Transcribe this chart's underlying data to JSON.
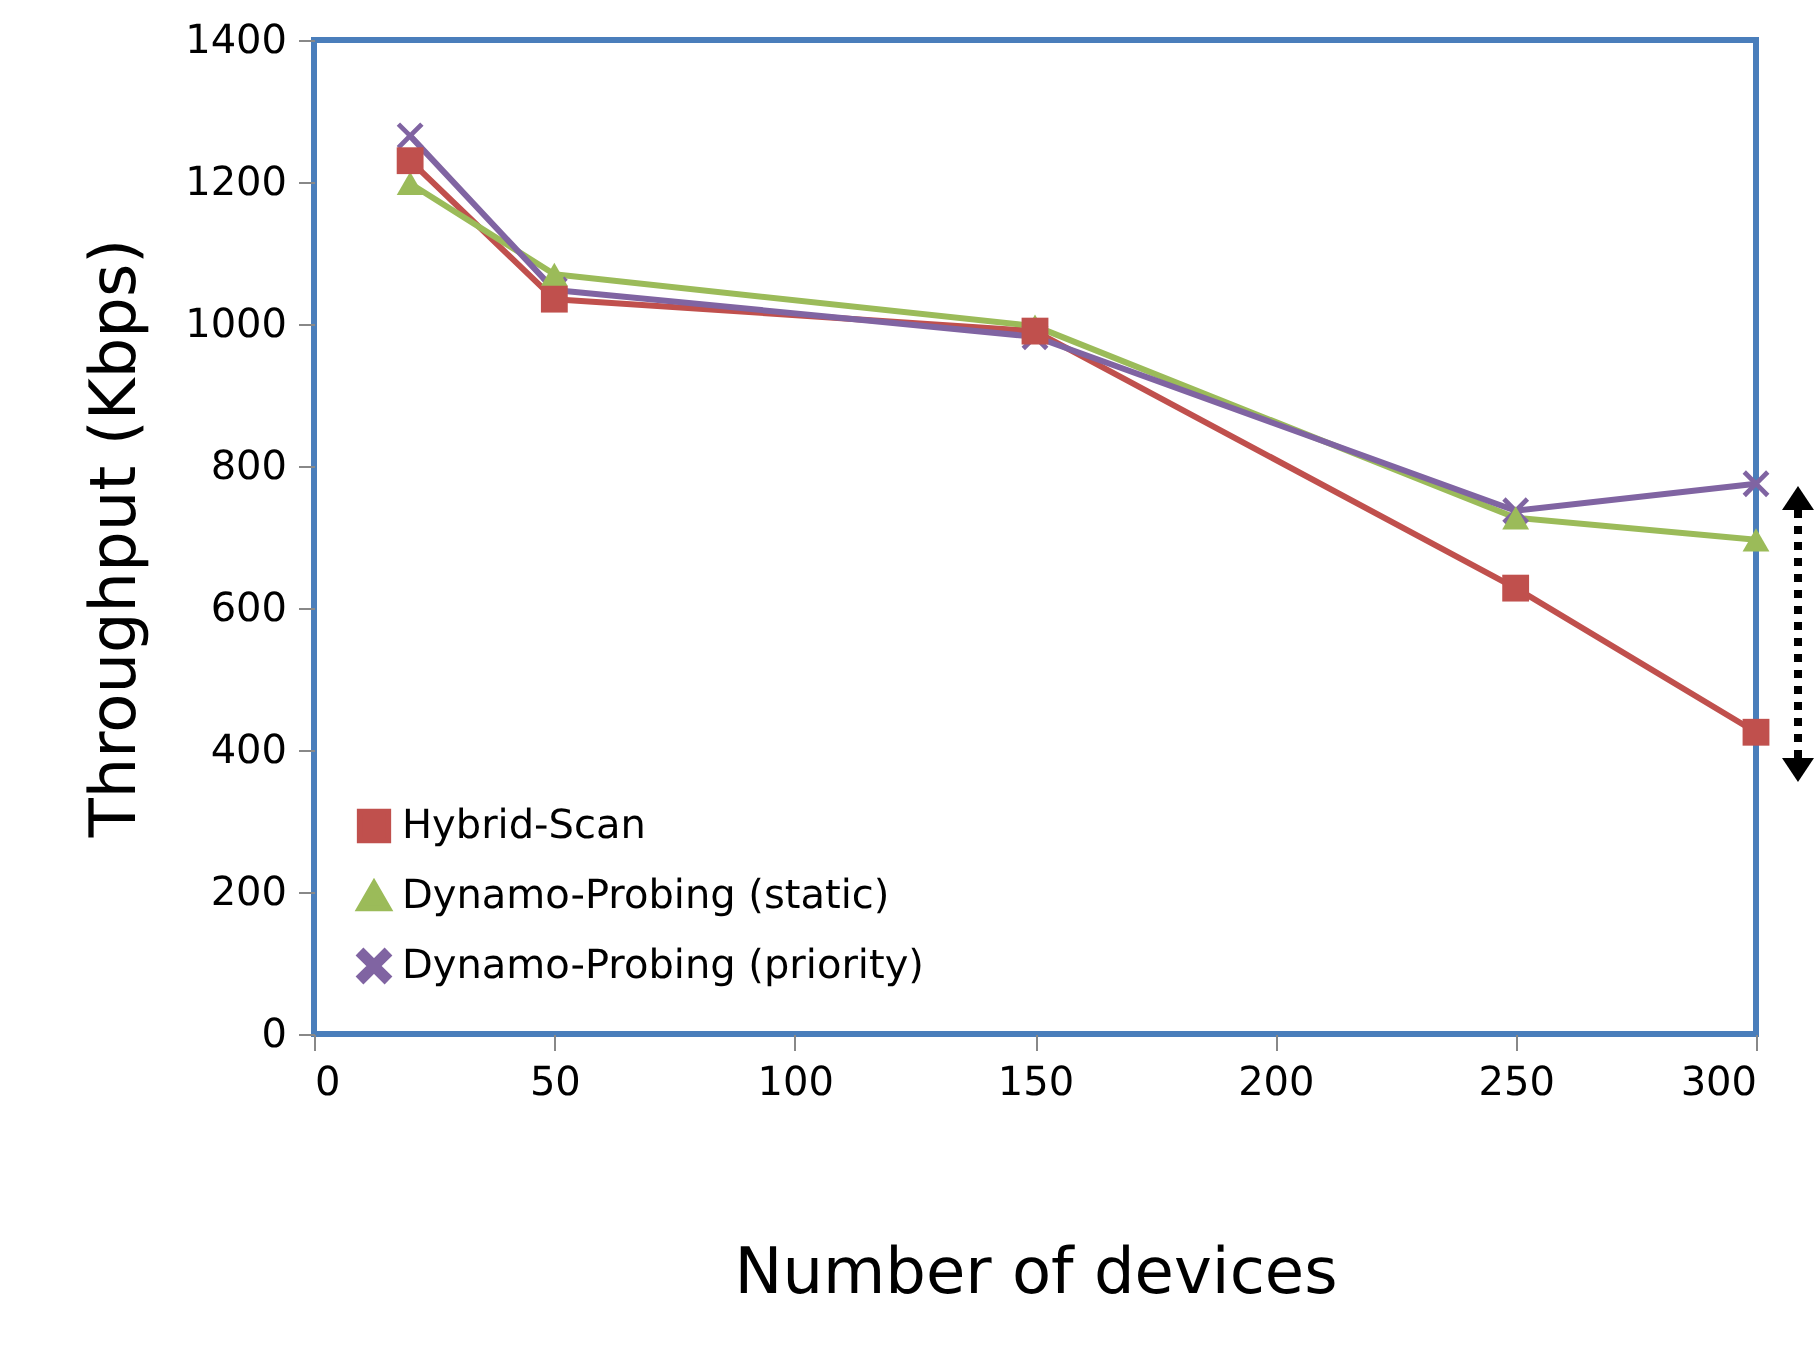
{
  "chart_data": {
    "type": "line",
    "xlabel": "Number of devices",
    "ylabel": "Throughput (Kbps)",
    "x": [
      20,
      50,
      150,
      250,
      300
    ],
    "series": [
      {
        "name": "Hybrid-Scan",
        "color": "#c0504d",
        "marker": "square",
        "values": [
          1230,
          1035,
          990,
          628,
          425
        ]
      },
      {
        "name": "Dynamo-Probing (static)",
        "color": "#9bbb59",
        "marker": "triangle",
        "values": [
          1198,
          1070,
          997,
          727,
          696
        ]
      },
      {
        "name": "Dynamo-Probing (priority)",
        "color": "#8064a2",
        "marker": "cross",
        "values": [
          1265,
          1048,
          982,
          737,
          775
        ]
      }
    ],
    "xlim": [
      0,
      300
    ],
    "xticks": [
      0,
      50,
      100,
      150,
      200,
      250,
      300
    ],
    "ylim": [
      0,
      1400
    ],
    "yticks": [
      0,
      200,
      400,
      600,
      800,
      1000,
      1200,
      1400
    ],
    "grid": false,
    "legend": "bottom left",
    "line_style": "solid"
  }
}
